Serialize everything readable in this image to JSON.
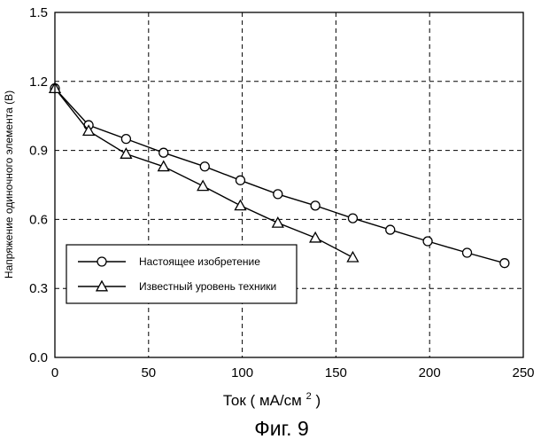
{
  "chart_data": {
    "type": "line",
    "title": "",
    "xlabel": "Ток",
    "xlabel_unit": "мА/см",
    "xlabel_unit_superscript": "2",
    "ylabel": "Напряжение одиночного элемента (В)",
    "xlim": [
      0,
      250
    ],
    "ylim": [
      0.0,
      1.5
    ],
    "xticks": [
      0,
      50,
      100,
      150,
      200,
      250
    ],
    "yticks": [
      0.0,
      0.3,
      0.6,
      0.9,
      1.2,
      1.5
    ],
    "xtick_labels": [
      "0",
      "50",
      "100",
      "150",
      "200",
      "250"
    ],
    "ytick_labels": [
      "0.0",
      "0.3",
      "0.6",
      "0.9",
      "1.2",
      "1.5"
    ],
    "grid": true,
    "legend_position": "lower-left",
    "series": [
      {
        "name": "Настоящее изобретение",
        "marker": "circle",
        "x": [
          0,
          18,
          38,
          58,
          80,
          99,
          119,
          139,
          159,
          179,
          199,
          220,
          240
        ],
        "y": [
          1.17,
          1.01,
          0.95,
          0.89,
          0.83,
          0.77,
          0.71,
          0.66,
          0.605,
          0.555,
          0.505,
          0.455,
          0.41
        ]
      },
      {
        "name": "Известный уровень техники",
        "marker": "triangle",
        "x": [
          0,
          18,
          38,
          58,
          79,
          99,
          119,
          139,
          159
        ],
        "y": [
          1.17,
          0.985,
          0.885,
          0.83,
          0.745,
          0.66,
          0.585,
          0.52,
          0.435
        ]
      }
    ],
    "caption": "Фиг. 9"
  }
}
